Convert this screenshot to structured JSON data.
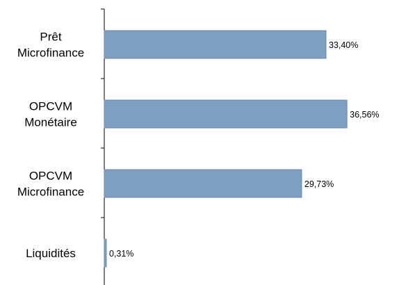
{
  "chart_data": {
    "type": "bar",
    "orientation": "horizontal",
    "categories": [
      [
        "Prêt",
        "Microfinance"
      ],
      [
        "OPCVM",
        "Monétaire"
      ],
      [
        "OPCVM",
        "Microfinance"
      ],
      [
        "Liquidités"
      ]
    ],
    "values": [
      33.4,
      36.56,
      29.73,
      0.31
    ],
    "data_labels": [
      "33,40%",
      "36,56%",
      "29,73%",
      "0,31%"
    ],
    "title": "",
    "xlabel": "",
    "ylabel": "",
    "xlim": [
      0,
      40
    ],
    "grid": false,
    "legend": "none",
    "colors": {
      "bar_fill": "#7f9fc3",
      "bar_stroke": "#6a89ad",
      "axis": "#000000"
    }
  }
}
